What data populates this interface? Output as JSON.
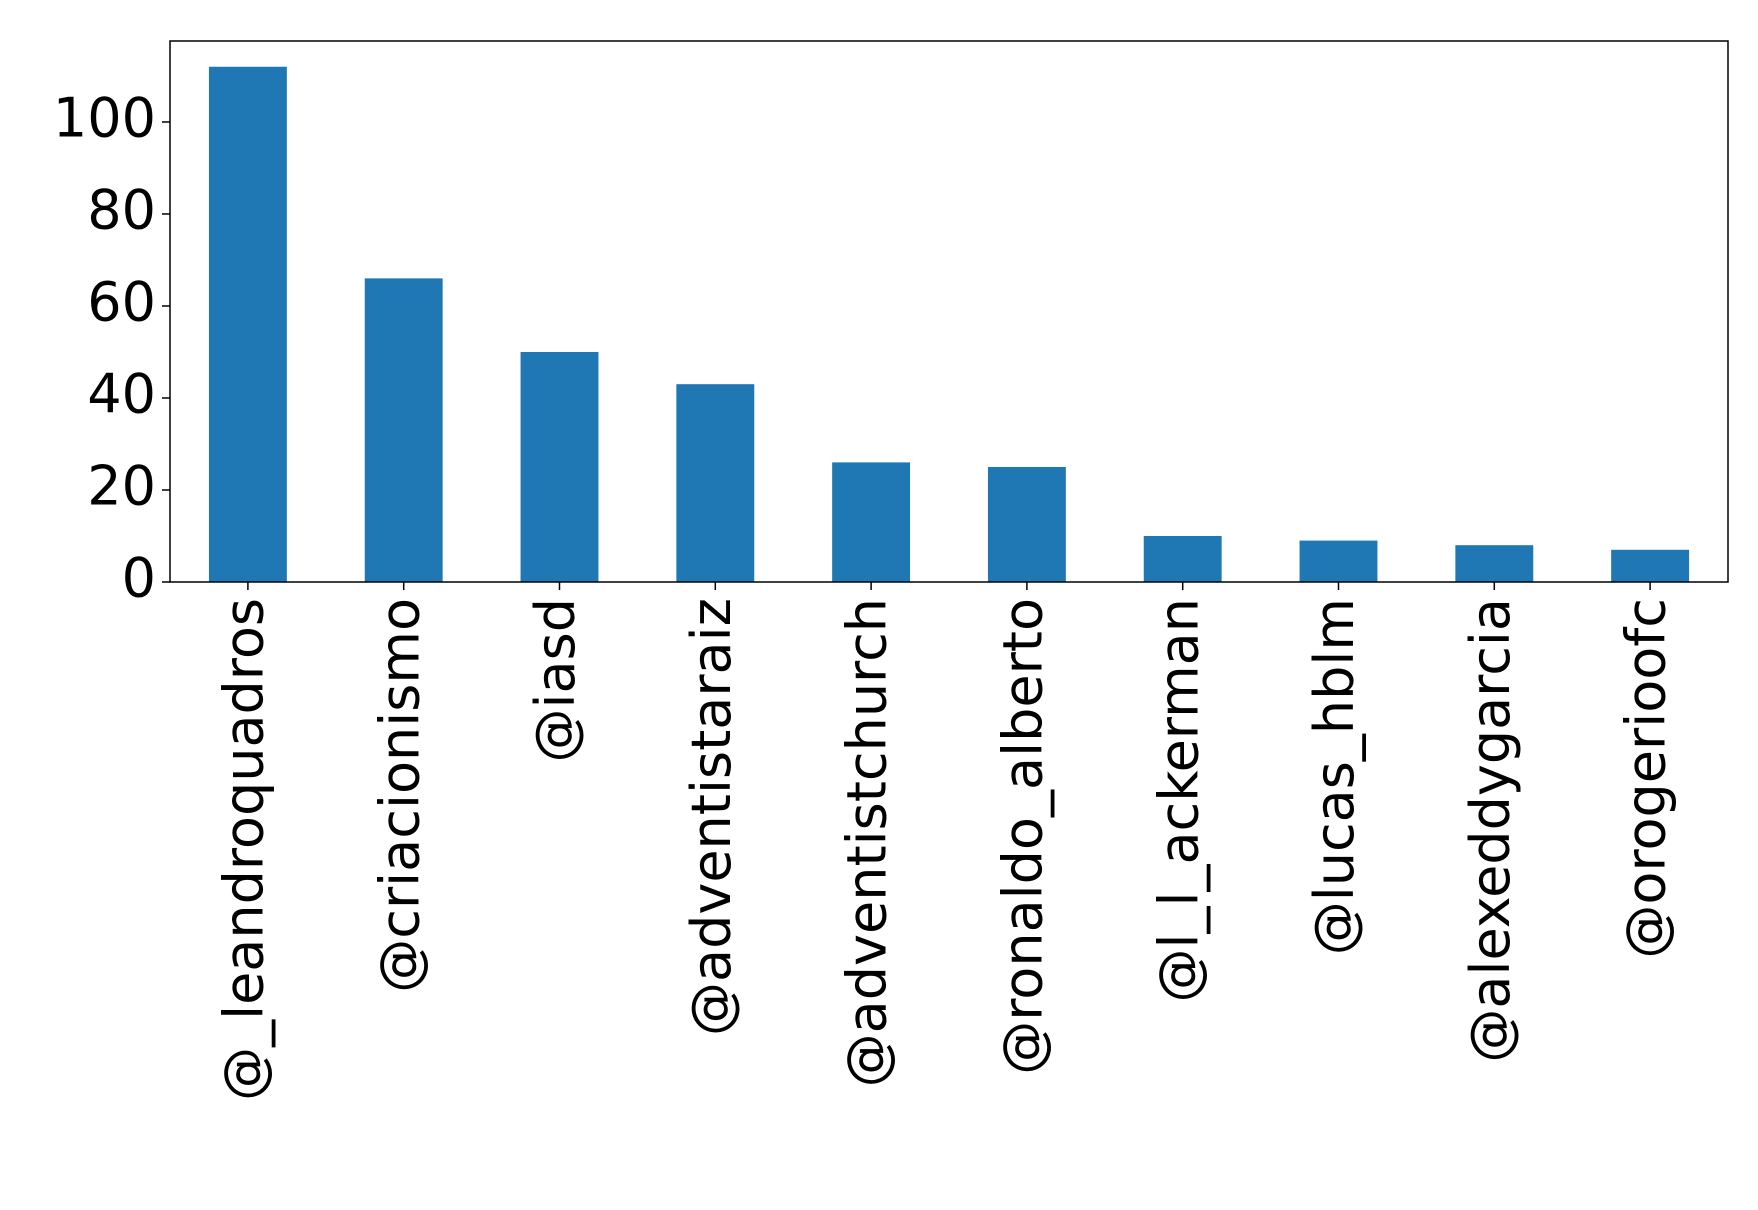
{
  "chart_data": {
    "type": "bar",
    "categories": [
      "@_leandroquadros",
      "@criacionismo",
      "@iasd",
      "@adventistaraiz",
      "@adventistchurch",
      "@ronaldo_alberto",
      "@l_l_ackerman",
      "@lucas_hblm",
      "@alexeddygarcia",
      "@orogerioofc"
    ],
    "values": [
      112,
      66,
      50,
      43,
      26,
      25,
      10,
      9,
      8,
      7
    ],
    "color": "#1f77b4",
    "ylim": [
      0,
      117.6
    ],
    "yticks": [
      0,
      20,
      40,
      60,
      80,
      100
    ],
    "grid": false
  }
}
